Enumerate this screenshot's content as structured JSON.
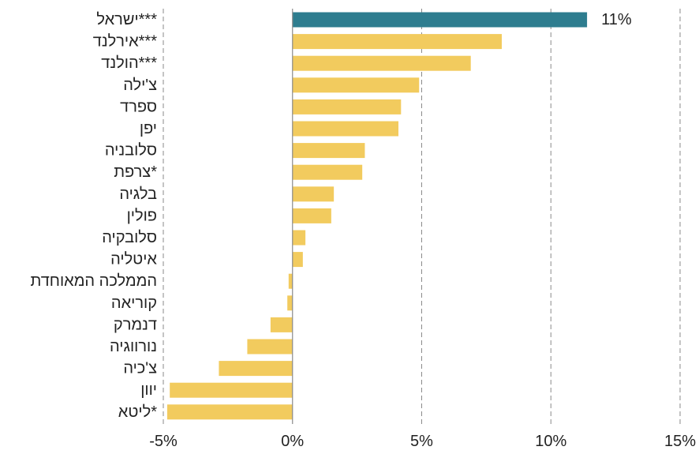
{
  "chart_data": {
    "type": "bar",
    "orientation": "horizontal",
    "categories": [
      "ישראל***",
      "אירלנד***",
      "הולנד***",
      "צ'ילה",
      "ספרד",
      "יפן",
      "סלובניה",
      "צרפת*",
      "בלגיה",
      "פולין",
      "סלובקיה",
      "איטליה",
      "הממלכה המאוחדת",
      "קוריאה",
      "דנמרק",
      "נורווגיה",
      "צ'כיה",
      "יוון",
      "ליטא*"
    ],
    "values": [
      11.4,
      8.1,
      6.9,
      4.9,
      4.2,
      4.1,
      2.8,
      2.7,
      1.6,
      1.5,
      0.5,
      0.4,
      -0.15,
      -0.2,
      -0.85,
      -1.75,
      -2.85,
      -4.75,
      -4.85
    ],
    "bar_colors": [
      "#2e7d8f",
      "#f2cb5e",
      "#f2cb5e",
      "#f2cb5e",
      "#f2cb5e",
      "#f2cb5e",
      "#f2cb5e",
      "#f2cb5e",
      "#f2cb5e",
      "#f2cb5e",
      "#f2cb5e",
      "#f2cb5e",
      "#f2cb5e",
      "#f2cb5e",
      "#f2cb5e",
      "#f2cb5e",
      "#f2cb5e",
      "#f2cb5e",
      "#f2cb5e"
    ],
    "data_labels": [
      {
        "index": 0,
        "text": "11%"
      }
    ],
    "xlim": [
      -5,
      15
    ],
    "xticks": [
      -5,
      0,
      5,
      10,
      15
    ],
    "xtick_labels": [
      "-5%",
      "0%",
      "5%",
      "10%",
      "15%"
    ],
    "grid": "vertical-dashed",
    "title": "",
    "xlabel": "",
    "ylabel": "",
    "legend": "none"
  }
}
